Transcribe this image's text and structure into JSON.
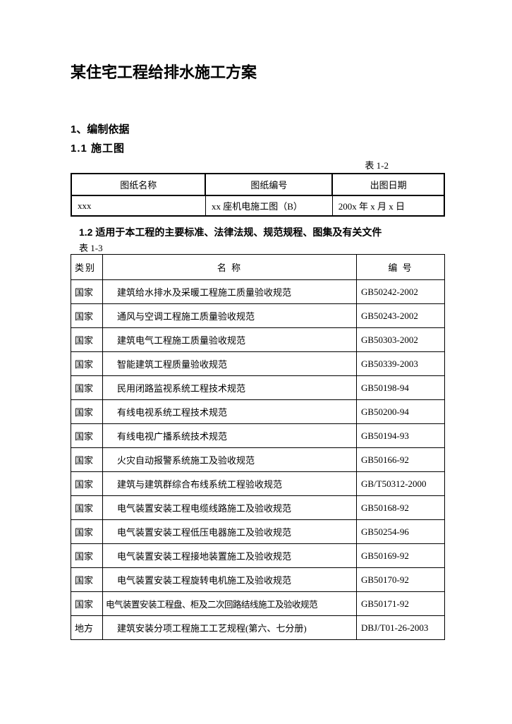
{
  "title": "某住宅工程给排水施工方案",
  "section1": {
    "heading": "1、编制依据",
    "sub1": {
      "heading": "1.1  施工图",
      "tableLabel": "表 1-2",
      "headers": {
        "c1": "图纸名称",
        "c2": "图纸编号",
        "c3": "出图日期"
      },
      "rows": [
        {
          "c1": "xxx",
          "c2": "xx 座机电施工图（B）",
          "c3": "200x 年 x 月 x 日"
        }
      ]
    },
    "sub2": {
      "heading": "1.2  适用于本工程的主要标准、法律法规、规范规程、图集及有关文件",
      "tableLabel": "表 1-3",
      "headers": {
        "c1": "类别",
        "c2": "名    称",
        "c3": "编  号"
      },
      "rows": [
        {
          "cat": "国家",
          "name": "建筑给水排水及采暖工程施工质量验收规范",
          "code": "GB50242-2002"
        },
        {
          "cat": "国家",
          "name": "通风与空调工程施工质量验收规范",
          "code": "GB50243-2002"
        },
        {
          "cat": "国家",
          "name": "建筑电气工程施工质量验收规范",
          "code": "GB50303-2002"
        },
        {
          "cat": "国家",
          "name": "智能建筑工程质量验收规范",
          "code": "GB50339-2003"
        },
        {
          "cat": "国家",
          "name": "民用闭路监视系统工程技术规范",
          "code": "GB50198-94"
        },
        {
          "cat": "国家",
          "name": "有线电视系统工程技术规范",
          "code": "GB50200-94"
        },
        {
          "cat": "国家",
          "name": "有线电视广播系统技术规范",
          "code": "GB50194-93"
        },
        {
          "cat": "国家",
          "name": "火灾自动报警系统施工及验收规范",
          "code": "GB50166-92"
        },
        {
          "cat": "国家",
          "name": "建筑与建筑群综合布线系统工程验收规范",
          "code": "GB/T50312-2000"
        },
        {
          "cat": "国家",
          "name": "电气装置安装工程电缆线路施工及验收规范",
          "code": "GB50168-92"
        },
        {
          "cat": "国家",
          "name": "电气装置安装工程低压电器施工及验收规范",
          "code": "GB50254-96"
        },
        {
          "cat": "国家",
          "name": "电气装置安装工程接地装置施工及验收规范",
          "code": "GB50169-92"
        },
        {
          "cat": "国家",
          "name": "电气装置安装工程旋转电机施工及验收规范",
          "code": "GB50170-92"
        },
        {
          "cat": "国家",
          "name": "电气装置安装工程盘、柜及二次回路结线施工及验收规范",
          "code": "GB50171-92",
          "tight": true
        },
        {
          "cat": "地方",
          "name": "建筑安装分项工程施工工艺规程(第六、七分册)",
          "code": "DBJ/T01-26-2003"
        }
      ]
    }
  }
}
